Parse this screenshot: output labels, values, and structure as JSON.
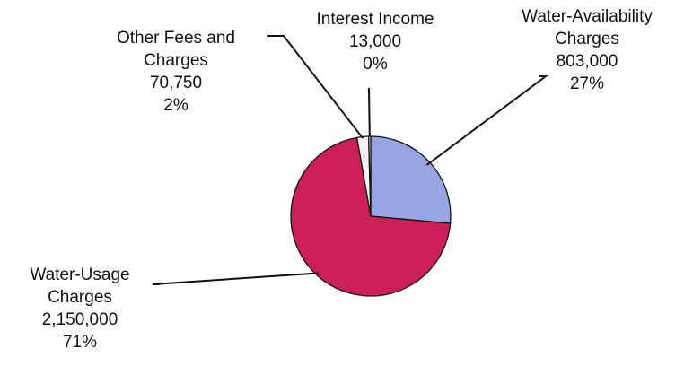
{
  "chart_data": {
    "type": "pie",
    "title": "",
    "start_angle_deg": 0,
    "direction": "clockwise",
    "slices": [
      {
        "label_lines": [
          "Water-Availability",
          "Charges"
        ],
        "value": 803000,
        "value_label": "803,000",
        "percent_label": "27%",
        "color": "#97A6E0"
      },
      {
        "label_lines": [
          "Water-Usage",
          "Charges"
        ],
        "value": 2150000,
        "value_label": "2,150,000",
        "percent_label": "71%",
        "color": "#CC1F57"
      },
      {
        "label_lines": [
          "Other Fees and",
          "Charges"
        ],
        "value": 70750,
        "value_label": "70,750",
        "percent_label": "2%",
        "color": "#F4F2EE"
      },
      {
        "label_lines": [
          "Interest Income"
        ],
        "value": 13000,
        "value_label": "13,000",
        "percent_label": "0%",
        "color": "#E9E7E2"
      }
    ],
    "legend": "none"
  }
}
